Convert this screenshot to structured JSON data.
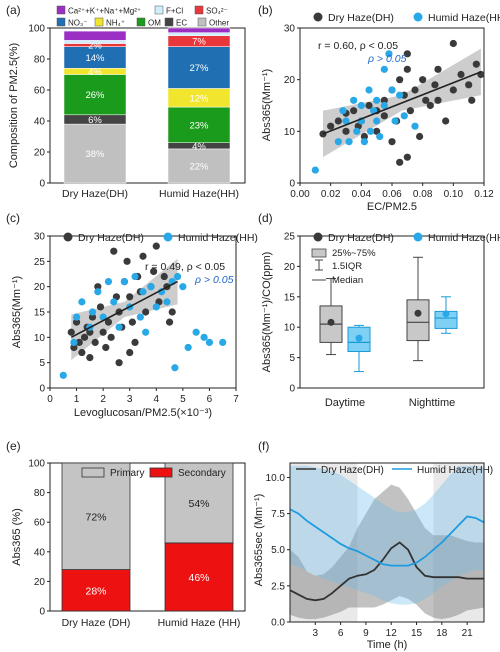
{
  "colors": {
    "dh": "#3a3a3a",
    "hh": "#29a8e8",
    "purple": "#9b2fc4",
    "lightblue": "#cfeefc",
    "sulfate": "#e8363a",
    "nitrate": "#1f6fb2",
    "ammonium": "#f2e52e",
    "om": "#1b9b1b",
    "ec": "#444444",
    "other": "#c0c0c0",
    "primary": "#c4c4c4",
    "secondary": "#ee1111"
  },
  "chart_data": [
    {
      "panel": "(a)",
      "type": "bar",
      "stacked": true,
      "ylabel": "Composition of PM2.5(%)",
      "ylim": [
        0,
        100
      ],
      "yticks": [
        0,
        20,
        40,
        60,
        80,
        100
      ],
      "categories": [
        "Dry Haze(DH)",
        "Humid Haze(HH)"
      ],
      "legend": [
        "Ca²⁺+K⁺+Na⁺+Mg²⁺",
        "F+Cl",
        "SO₄²⁻",
        "NO₃⁻",
        "NH₄⁺",
        "OM",
        "EC",
        "Other"
      ],
      "series": [
        {
          "name": "Other",
          "color_key": "other",
          "values": [
            38,
            22
          ],
          "labels": [
            "38%",
            "22%"
          ]
        },
        {
          "name": "EC",
          "color_key": "ec",
          "values": [
            6,
            4
          ],
          "labels": [
            "6%",
            "4%"
          ]
        },
        {
          "name": "OM",
          "color_key": "om",
          "values": [
            26,
            23
          ],
          "labels": [
            "26%",
            "23%"
          ]
        },
        {
          "name": "NH₄⁺",
          "color_key": "ammonium",
          "values": [
            4,
            12
          ],
          "labels": [
            "4%",
            "12%"
          ]
        },
        {
          "name": "NO₃⁻",
          "color_key": "nitrate",
          "values": [
            14,
            27
          ],
          "labels": [
            "14%",
            "27%"
          ]
        },
        {
          "name": "SO₄²⁻",
          "color_key": "sulfate",
          "values": [
            2,
            7
          ],
          "labels": [
            "2%",
            "7%"
          ]
        },
        {
          "name": "F+Cl",
          "color_key": "lightblue",
          "values": [
            2,
            2
          ],
          "labels": [
            "",
            ""
          ]
        },
        {
          "name": "Ca²⁺+K⁺+Na⁺+Mg²⁺",
          "color_key": "purple",
          "values": [
            6,
            3
          ],
          "labels": [
            "",
            ""
          ]
        }
      ]
    },
    {
      "panel": "(b)",
      "type": "scatter",
      "xlabel": "EC/PM2.5",
      "ylabel": "Abs365(Mm⁻¹)",
      "xlim": [
        0,
        0.12
      ],
      "ylim": [
        0,
        30
      ],
      "xticks": [
        0.0,
        0.02,
        0.04,
        0.06,
        0.08,
        0.1,
        0.12
      ],
      "yticks": [
        0,
        10,
        20,
        30
      ],
      "legend": [
        "Dry Haze(DH)",
        "Humid Haze(HH)"
      ],
      "annotation_1": "r = 0.60, ρ < 0.05",
      "annotation_2": "ρ > 0.05",
      "fit": {
        "x": [
          0.015,
          0.118
        ],
        "y": [
          9.5,
          21.5
        ]
      },
      "series": [
        {
          "name": "Dry Haze(DH)",
          "color_key": "dh",
          "points": [
            [
              0.015,
              9.5
            ],
            [
              0.02,
              11
            ],
            [
              0.025,
              12
            ],
            [
              0.03,
              13.5
            ],
            [
              0.03,
              10
            ],
            [
              0.035,
              14
            ],
            [
              0.038,
              11
            ],
            [
              0.04,
              12
            ],
            [
              0.042,
              9
            ],
            [
              0.045,
              15
            ],
            [
              0.05,
              14
            ],
            [
              0.05,
              10
            ],
            [
              0.055,
              13
            ],
            [
              0.055,
              16
            ],
            [
              0.06,
              8
            ],
            [
              0.06,
              18
            ],
            [
              0.063,
              12
            ],
            [
              0.065,
              20
            ],
            [
              0.068,
              17
            ],
            [
              0.07,
              25
            ],
            [
              0.07,
              22
            ],
            [
              0.072,
              14
            ],
            [
              0.075,
              18
            ],
            [
              0.078,
              9
            ],
            [
              0.08,
              20
            ],
            [
              0.082,
              16
            ],
            [
              0.085,
              15
            ],
            [
              0.088,
              19
            ],
            [
              0.09,
              22
            ],
            [
              0.095,
              12
            ],
            [
              0.1,
              27
            ],
            [
              0.1,
              18
            ],
            [
              0.105,
              21
            ],
            [
              0.11,
              19
            ],
            [
              0.112,
              16
            ],
            [
              0.115,
              23
            ],
            [
              0.118,
              21
            ],
            [
              0.07,
              5
            ],
            [
              0.065,
              4
            ],
            [
              0.09,
              16
            ]
          ]
        },
        {
          "name": "Humid Haze(HH)",
          "color_key": "hh",
          "points": [
            [
              0.01,
              2.5
            ],
            [
              0.025,
              8
            ],
            [
              0.028,
              14
            ],
            [
              0.03,
              12
            ],
            [
              0.032,
              8
            ],
            [
              0.035,
              16
            ],
            [
              0.037,
              10
            ],
            [
              0.04,
              12
            ],
            [
              0.04,
              15
            ],
            [
              0.042,
              8
            ],
            [
              0.045,
              18
            ],
            [
              0.046,
              10
            ],
            [
              0.048,
              14
            ],
            [
              0.05,
              12
            ],
            [
              0.05,
              16
            ],
            [
              0.052,
              9
            ],
            [
              0.055,
              22
            ],
            [
              0.055,
              15
            ],
            [
              0.058,
              25
            ],
            [
              0.06,
              18
            ],
            [
              0.062,
              12
            ],
            [
              0.065,
              17
            ],
            [
              0.068,
              13
            ],
            [
              0.075,
              11
            ]
          ]
        }
      ]
    },
    {
      "panel": "(c)",
      "type": "scatter",
      "xlabel": "Levoglucosan/PM2.5(×10⁻³)",
      "ylabel": "Abs365(Mm⁻¹)",
      "xlim": [
        0,
        7
      ],
      "ylim": [
        0,
        30
      ],
      "xticks": [
        0,
        1,
        2,
        3,
        4,
        5,
        6,
        7
      ],
      "yticks": [
        0,
        5,
        10,
        15,
        20,
        25,
        30
      ],
      "legend": [
        "Dry Haze(DH)",
        "Humid Haze(HH)"
      ],
      "annotation_1": "r = 0.49, ρ < 0.05",
      "annotation_2": "ρ > 0.05",
      "fit": {
        "x": [
          0.8,
          4.8
        ],
        "y": [
          10,
          21
        ]
      },
      "series": [
        {
          "name": "Dry Haze(DH)",
          "color_key": "dh",
          "points": [
            [
              0.8,
              11
            ],
            [
              0.9,
              8
            ],
            [
              1.0,
              13
            ],
            [
              1.1,
              9
            ],
            [
              1.2,
              7
            ],
            [
              1.3,
              10
            ],
            [
              1.4,
              12
            ],
            [
              1.5,
              6
            ],
            [
              1.6,
              14
            ],
            [
              1.7,
              9
            ],
            [
              1.8,
              20
            ],
            [
              1.9,
              16
            ],
            [
              2.0,
              11
            ],
            [
              2.1,
              8
            ],
            [
              2.2,
              13
            ],
            [
              2.3,
              10
            ],
            [
              2.4,
              27
            ],
            [
              2.5,
              18
            ],
            [
              2.6,
              15
            ],
            [
              2.7,
              12
            ],
            [
              2.8,
              21
            ],
            [
              2.9,
              25
            ],
            [
              3.0,
              18
            ],
            [
              3.1,
              13
            ],
            [
              3.2,
              9
            ],
            [
              3.3,
              22
            ],
            [
              3.4,
              19
            ],
            [
              3.5,
              26
            ],
            [
              3.6,
              15
            ],
            [
              3.8,
              20
            ],
            [
              3.9,
              23
            ],
            [
              4.0,
              28
            ],
            [
              4.1,
              17
            ],
            [
              4.3,
              22
            ],
            [
              4.4,
              20
            ],
            [
              4.5,
              13
            ],
            [
              4.6,
              15
            ],
            [
              3.0,
              7
            ],
            [
              2.6,
              5
            ],
            [
              1.5,
              11
            ]
          ]
        },
        {
          "name": "Humid Haze(HH)",
          "color_key": "hh",
          "points": [
            [
              0.5,
              2.5
            ],
            [
              0.9,
              9
            ],
            [
              1.0,
              14
            ],
            [
              1.2,
              17
            ],
            [
              1.5,
              12
            ],
            [
              1.6,
              15
            ],
            [
              1.8,
              19
            ],
            [
              2.0,
              14
            ],
            [
              2.2,
              21
            ],
            [
              2.4,
              17
            ],
            [
              2.6,
              12
            ],
            [
              2.8,
              21
            ],
            [
              3.0,
              16
            ],
            [
              3.2,
              22
            ],
            [
              3.4,
              14
            ],
            [
              3.5,
              19
            ],
            [
              3.6,
              11
            ],
            [
              3.8,
              20
            ],
            [
              4.0,
              16
            ],
            [
              4.2,
              19
            ],
            [
              4.4,
              17
            ],
            [
              4.6,
              21
            ],
            [
              4.8,
              22
            ],
            [
              5.0,
              20
            ],
            [
              5.2,
              8
            ],
            [
              5.5,
              11
            ],
            [
              5.8,
              10
            ],
            [
              6.0,
              9
            ],
            [
              6.5,
              9
            ],
            [
              4.7,
              4
            ]
          ]
        }
      ]
    },
    {
      "panel": "(d)",
      "type": "box",
      "ylabel": "Abs365(Mm⁻¹)/CO(ppm)",
      "ylim": [
        0,
        25
      ],
      "yticks": [
        0,
        5,
        10,
        15,
        20,
        25
      ],
      "categories": [
        "Daytime",
        "Nighttime"
      ],
      "legend": [
        "Dry Haze(DH)",
        "Humid Haze(HH)"
      ],
      "key_labels": [
        "25%~75%",
        "1.5IQR",
        "Median"
      ],
      "series": [
        {
          "name": "Dry Haze(DH)",
          "color_key": "dh",
          "boxes": [
            {
              "category": "Daytime",
              "min": 5.5,
              "q1": 7.5,
              "median": 10.5,
              "q3": 13.5,
              "max": 18,
              "mean": 10.8
            },
            {
              "category": "Nighttime",
              "min": 4.5,
              "q1": 7.8,
              "median": 10.8,
              "q3": 14.5,
              "max": 21.5,
              "mean": 12.3
            }
          ]
        },
        {
          "name": "Humid Haze(HH)",
          "color_key": "hh",
          "boxes": [
            {
              "category": "Daytime",
              "min": 2.7,
              "q1": 6,
              "median": 7.5,
              "q3": 10,
              "max": 10.3,
              "mean": 8.2
            },
            {
              "category": "Nighttime",
              "min": 9,
              "q1": 9.8,
              "median": 11.5,
              "q3": 12.6,
              "max": 15,
              "mean": 12.2
            }
          ]
        }
      ]
    },
    {
      "panel": "(e)",
      "type": "bar",
      "stacked": true,
      "ylabel": "Abs365 (%)",
      "ylim": [
        0,
        100
      ],
      "yticks": [
        0,
        20,
        40,
        60,
        80,
        100
      ],
      "categories": [
        "Dry Haze (DH)",
        "Humid Haze (HH)"
      ],
      "legend": [
        "Primary",
        "Secondary"
      ],
      "series": [
        {
          "name": "Secondary",
          "color_key": "secondary",
          "values": [
            28,
            46
          ],
          "labels": [
            "28%",
            "46%"
          ]
        },
        {
          "name": "Primary",
          "color_key": "primary",
          "values": [
            72,
            54
          ],
          "labels": [
            "72%",
            "54%"
          ]
        }
      ]
    },
    {
      "panel": "(f)",
      "type": "line",
      "xlabel": "Time (h)",
      "ylabel": "Abs365sec (Mm⁻¹)",
      "xlim": [
        0,
        23
      ],
      "ylim": [
        0,
        11
      ],
      "xticks": [
        3,
        6,
        9,
        12,
        15,
        18,
        21
      ],
      "yticks": [
        0.0,
        2.5,
        5.0,
        7.5,
        10.0
      ],
      "legend": [
        "Dry Haze(DH)",
        "Humid Haze(HH)"
      ],
      "shaded_hours": [
        [
          0,
          8
        ],
        [
          17,
          23
        ]
      ],
      "x": [
        0,
        1,
        2,
        3,
        4,
        5,
        6,
        7,
        8,
        9,
        10,
        11,
        12,
        13,
        14,
        15,
        16,
        17,
        18,
        19,
        20,
        21,
        22,
        23
      ],
      "series": [
        {
          "name": "Dry Haze(DH)",
          "color_key": "dh",
          "values": [
            2.2,
            1.9,
            1.6,
            1.5,
            1.6,
            2.0,
            2.5,
            3.0,
            3.2,
            3.3,
            3.6,
            4.3,
            5.1,
            5.5,
            5.0,
            3.8,
            3.2,
            3.1,
            3.1,
            3.1,
            3.1,
            3.0,
            3.0,
            3.0
          ],
          "band_low": [
            0.5,
            0.3,
            0.2,
            0.2,
            0.3,
            0.5,
            0.7,
            1.0,
            1.0,
            1.0,
            1.0,
            1.2,
            1.5,
            1.8,
            1.6,
            1.2,
            0.6,
            0.3,
            0.2,
            0.3,
            0.5,
            0.8,
            0.9,
            1.0
          ],
          "band_high": [
            5.0,
            4.5,
            3.5,
            3.2,
            3.3,
            3.8,
            4.5,
            5.2,
            6.5,
            7.5,
            8.5,
            9.0,
            9.5,
            9.3,
            8.5,
            7.5,
            6.5,
            6.0,
            6.0,
            6.0,
            5.8,
            5.6,
            5.5,
            5.5
          ]
        },
        {
          "name": "Humid Haze(HH)",
          "color_key": "hh",
          "values": [
            7.8,
            7.5,
            7.0,
            6.6,
            6.2,
            5.8,
            5.4,
            5.1,
            4.9,
            4.6,
            4.3,
            4.0,
            3.9,
            3.9,
            3.9,
            4.1,
            4.5,
            5.0,
            5.5,
            6.1,
            6.7,
            7.3,
            7.2,
            6.9
          ],
          "band_low": [
            4.0,
            3.8,
            3.5,
            3.2,
            3.0,
            2.8,
            2.6,
            2.4,
            2.2,
            2.0,
            1.8,
            1.5,
            1.3,
            1.2,
            1.2,
            1.3,
            1.6,
            2.0,
            2.5,
            2.8,
            3.2,
            3.4,
            3.6,
            3.6
          ],
          "band_high": [
            10.8,
            10.8,
            10.8,
            10.7,
            10.6,
            10.4,
            10.2,
            9.8,
            9.4,
            9.0,
            8.6,
            8.2,
            7.8,
            7.6,
            7.6,
            7.8,
            8.2,
            8.8,
            9.5,
            10.2,
            10.8,
            10.8,
            10.8,
            10.7
          ]
        }
      ]
    }
  ]
}
